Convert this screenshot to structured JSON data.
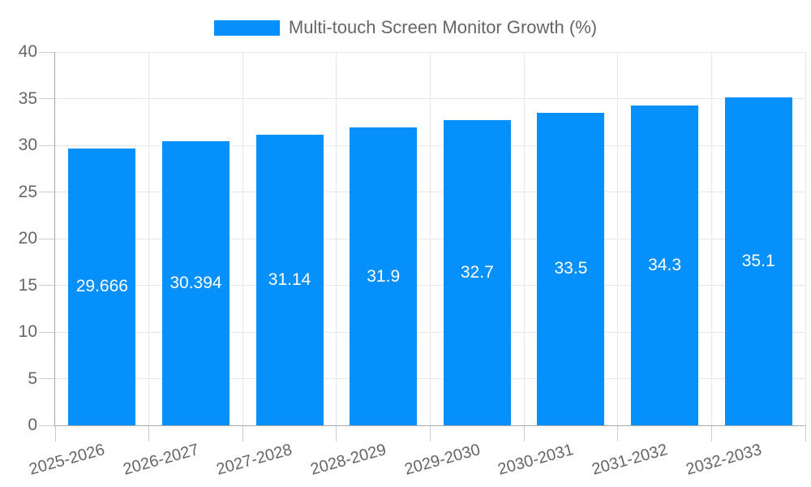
{
  "legend": {
    "label": "Multi-touch Screen Monitor Growth (%)"
  },
  "colors": {
    "bar": "#0590FB",
    "grid": "#e6e6e6",
    "axis_border": "#aaaaaa",
    "tick": "#cccccc",
    "text": "#666666",
    "bar_label_text": "#ffffff",
    "background": "#ffffff"
  },
  "chart_data": {
    "type": "bar",
    "title": "",
    "categories": [
      "2025-2026",
      "2026-2027",
      "2027-2028",
      "2028-2029",
      "2029-2030",
      "2030-2031",
      "2031-2032",
      "2032-2033"
    ],
    "series": [
      {
        "name": "Multi-touch Screen Monitor Growth (%)",
        "values": [
          29.666,
          30.394,
          31.14,
          31.9,
          32.7,
          33.5,
          34.3,
          35.1
        ],
        "value_labels": [
          "29.666",
          "30.394",
          "31.14",
          "31.9",
          "32.7",
          "33.5",
          "34.3",
          "35.1"
        ]
      }
    ],
    "xlabel": "",
    "ylabel": "",
    "ylim": [
      0,
      40
    ],
    "ytick_labels": [
      "0",
      "5",
      "10",
      "15",
      "20",
      "25",
      "30",
      "35",
      "40"
    ],
    "grid": "on",
    "legend_position": "top-center",
    "x_label_rotation_deg": -15.5,
    "bar_value_labels_position": "center-inside"
  }
}
